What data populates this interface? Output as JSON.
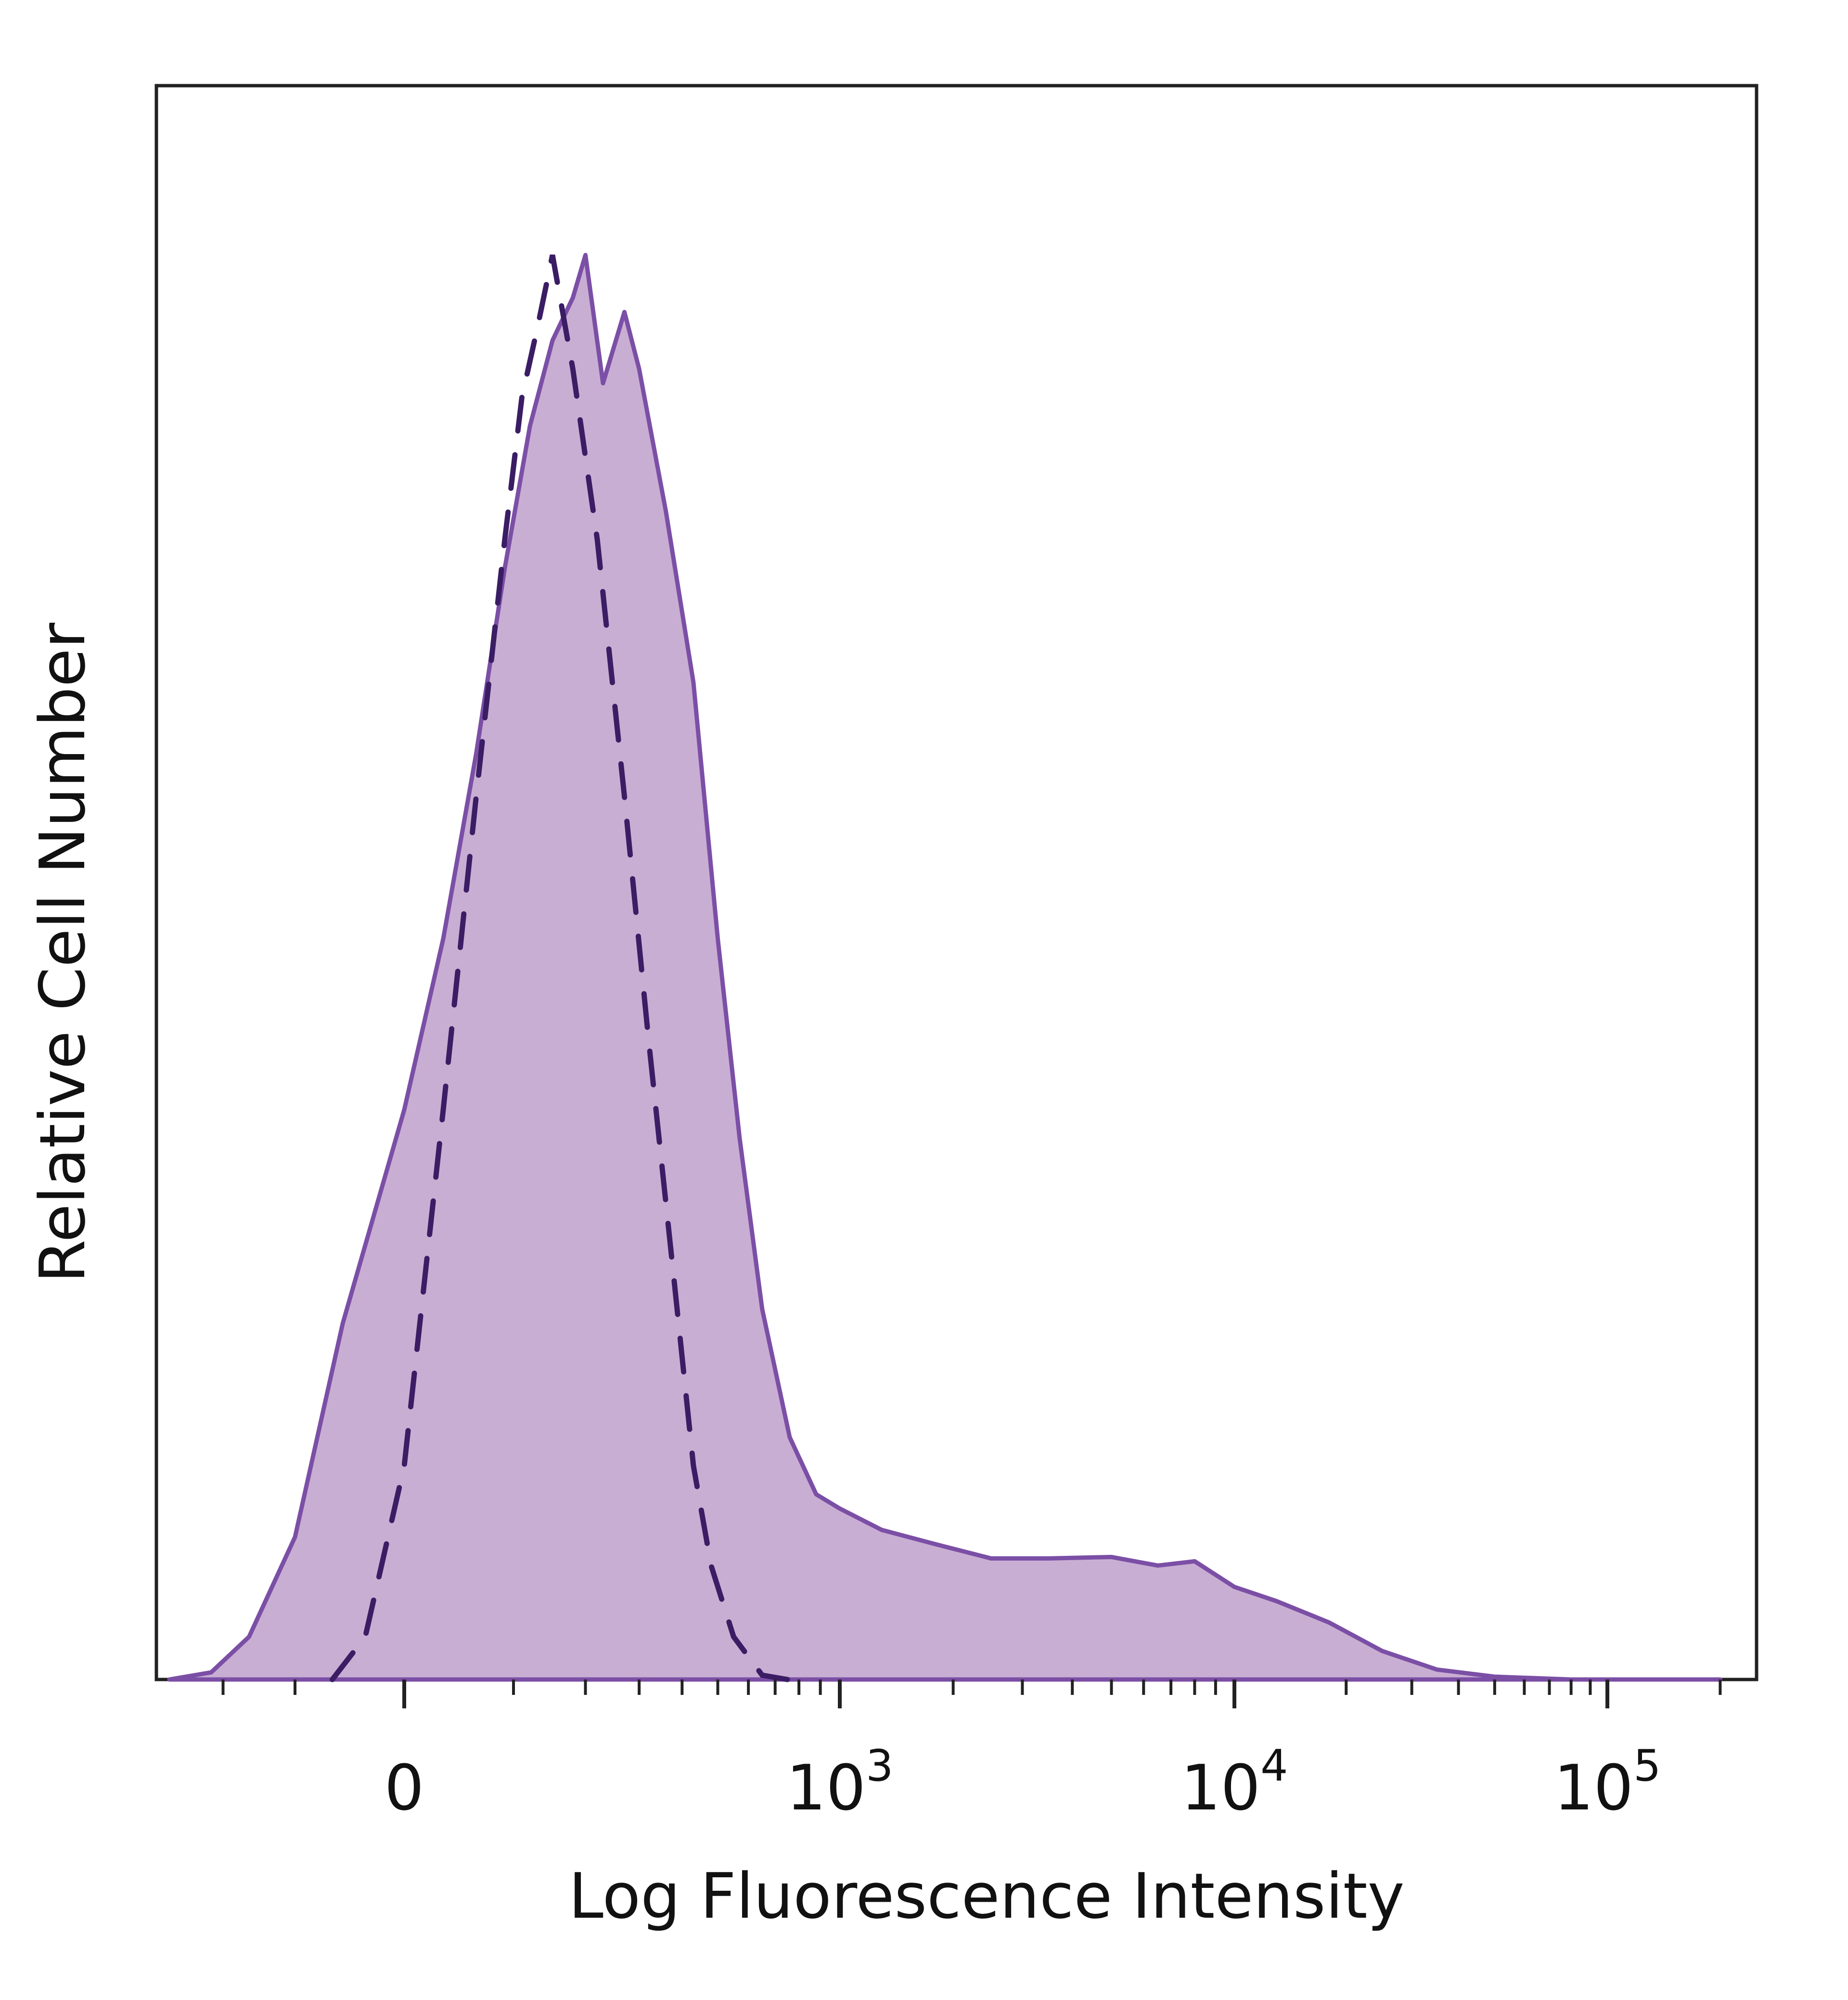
{
  "chart_data": {
    "type": "area",
    "xlabel": "Log Fluorescence Intensity",
    "ylabel": "Relative Cell Number",
    "x_scale": "biexponential",
    "x_range": [
      -300,
      200000
    ],
    "ylim": [
      0,
      100
    ],
    "grid": false,
    "x_tick_labels": [
      {
        "value": 0,
        "base": "0",
        "exp": ""
      },
      {
        "value": 1000,
        "base": "10",
        "exp": "3"
      },
      {
        "value": 10000,
        "base": "10",
        "exp": "4"
      },
      {
        "value": 100000,
        "base": "10",
        "exp": "5"
      }
    ],
    "series": [
      {
        "style": "filled",
        "color": "#7b4fa6",
        "fill": "#c9aed3",
        "points": [
          [
            -300,
            0
          ],
          [
            -220,
            0.5
          ],
          [
            -160,
            3
          ],
          [
            -100,
            10
          ],
          [
            -50,
            25
          ],
          [
            0,
            40
          ],
          [
            30,
            52
          ],
          [
            60,
            65
          ],
          [
            90,
            78
          ],
          [
            120,
            88
          ],
          [
            150,
            94
          ],
          [
            180,
            97
          ],
          [
            200,
            100
          ],
          [
            230,
            91
          ],
          [
            270,
            96
          ],
          [
            300,
            92
          ],
          [
            360,
            82
          ],
          [
            430,
            70
          ],
          [
            500,
            52
          ],
          [
            570,
            38
          ],
          [
            650,
            26
          ],
          [
            760,
            17
          ],
          [
            880,
            13
          ],
          [
            1000,
            12
          ],
          [
            1300,
            10.5
          ],
          [
            1800,
            9.5
          ],
          [
            2500,
            8.5
          ],
          [
            3500,
            8.5
          ],
          [
            5000,
            8.6
          ],
          [
            6500,
            8
          ],
          [
            8000,
            8.3
          ],
          [
            10000,
            6.5
          ],
          [
            13000,
            5.5
          ],
          [
            18000,
            4
          ],
          [
            25000,
            2
          ],
          [
            35000,
            0.7
          ],
          [
            50000,
            0.2
          ],
          [
            80000,
            0
          ],
          [
            200000,
            0
          ]
        ]
      },
      {
        "style": "dashed",
        "color": "#3a1d64",
        "points": [
          [
            -60,
            0
          ],
          [
            -30,
            3
          ],
          [
            0,
            15
          ],
          [
            30,
            40
          ],
          [
            60,
            62
          ],
          [
            90,
            80
          ],
          [
            110,
            90
          ],
          [
            130,
            95
          ],
          [
            150,
            100
          ],
          [
            180,
            92
          ],
          [
            220,
            80
          ],
          [
            270,
            62
          ],
          [
            320,
            45
          ],
          [
            380,
            28
          ],
          [
            430,
            15
          ],
          [
            480,
            8
          ],
          [
            550,
            3
          ],
          [
            650,
            0.3
          ],
          [
            750,
            0
          ]
        ]
      }
    ]
  }
}
